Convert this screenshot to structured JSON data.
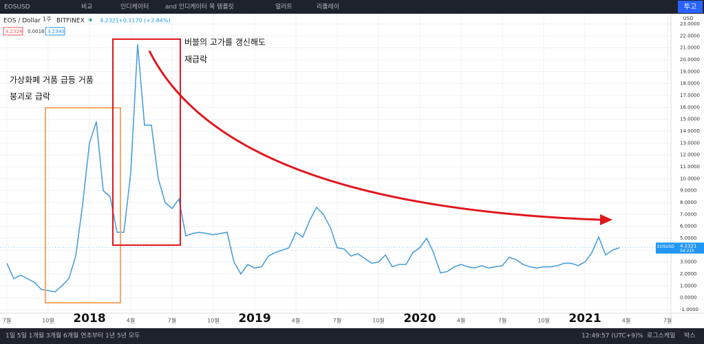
{
  "ui": {
    "toolbar": {
      "symbol": "EOSUSD",
      "compare": "비교",
      "indicators": "인디케이터",
      "templates": "and 인디케이터 목 템플릿",
      "alert": "얼러트",
      "replay": "리플레이",
      "publish": "투고"
    },
    "legend": {
      "name": "EOS / Dollar",
      "interval": "1주",
      "exchange": "BITFINEX",
      "price": "4.2321",
      "change": "+0.1170 (+2.84%)",
      "bid": "4.2324",
      "spread": "0.0016",
      "ask": "4.2340"
    },
    "axis_currency": "USD",
    "last_price": {
      "symbol": "EOSUSD",
      "value": 4.2321,
      "label": "4.2321",
      "countdown": "5d 21h"
    },
    "bottom": {
      "ranges": "1일 5일 1개월 3개월 6개월 연초부터 1년 5년 모두",
      "clock": "12:49:57 (UTC+9)",
      "percent": "%",
      "log": "로그스케일",
      "auto": "박스"
    }
  },
  "chart_data": {
    "type": "line",
    "annotations": [
      "버블의 고가를 갱신해도",
      "재급락",
      "가상화폐 거품 급등 거품",
      "붕괴로 급락"
    ],
    "categories": [
      "7월",
      null,
      null,
      null,
      null,
      null,
      "10월",
      null,
      null,
      null,
      null,
      null,
      "2018",
      null,
      null,
      null,
      null,
      null,
      "4월",
      null,
      null,
      null,
      null,
      null,
      "7월",
      null,
      null,
      null,
      null,
      null,
      "10월",
      null,
      null,
      null,
      null,
      null,
      "2019",
      null,
      null,
      null,
      null,
      null,
      "4월",
      null,
      null,
      null,
      null,
      null,
      "7월",
      null,
      null,
      null,
      null,
      null,
      "10월",
      null,
      null,
      null,
      null,
      null,
      "2020",
      null,
      null,
      null,
      null,
      null,
      "4월",
      null,
      null,
      null,
      null,
      null,
      "7월",
      null,
      null,
      null,
      null,
      null,
      "10월",
      null,
      null,
      null,
      null,
      null,
      "2021",
      null,
      null,
      null,
      null,
      null,
      "4월",
      null,
      null,
      null,
      null,
      null,
      "7월"
    ],
    "series": [
      {
        "name": "EOSUSD",
        "color": "#4a9fd8",
        "values": [
          2.9,
          1.6,
          1.9,
          1.6,
          1.3,
          0.7,
          0.6,
          0.5,
          1.0,
          1.6,
          3.5,
          7.8,
          13.0,
          14.8,
          9.0,
          8.5,
          5.5,
          5.5,
          10.5,
          21.3,
          14.5,
          14.5,
          10.0,
          8.0,
          7.5,
          8.3,
          5.2,
          5.4,
          5.5,
          5.4,
          5.3,
          5.4,
          5.5,
          3.0,
          2.0,
          2.8,
          2.5,
          2.6,
          3.5,
          3.8,
          4.0,
          4.2,
          5.5,
          5.1,
          6.5,
          7.6,
          7.0,
          5.9,
          4.2,
          4.1,
          3.5,
          3.7,
          3.3,
          2.9,
          3.0,
          3.6,
          2.6,
          2.8,
          2.8,
          3.8,
          4.2,
          5.0,
          3.8,
          2.1,
          2.2,
          2.6,
          2.8,
          2.6,
          2.5,
          2.7,
          2.5,
          2.6,
          2.7,
          3.4,
          3.2,
          2.8,
          2.6,
          2.5,
          2.6,
          2.6,
          2.7,
          2.9,
          2.9,
          2.7,
          3.0,
          3.8,
          5.1,
          3.6,
          4.0,
          4.2,
          null,
          null,
          null,
          null,
          null,
          null,
          null
        ]
      }
    ],
    "ylim": [
      -1,
      23
    ],
    "yticks": [
      {
        "value": 23,
        "label": "23.0000"
      },
      {
        "value": 22,
        "label": "22.0000"
      },
      {
        "value": 21,
        "label": "21.0000"
      },
      {
        "value": 20,
        "label": "20.0000"
      },
      {
        "value": 19,
        "label": "19.0000"
      },
      {
        "value": 18,
        "label": "18.0000"
      },
      {
        "value": 17,
        "label": "17.0000"
      },
      {
        "value": 16,
        "label": "16.0000"
      },
      {
        "value": 15,
        "label": "15.0000"
      },
      {
        "value": 14,
        "label": "14.0000"
      },
      {
        "value": 13,
        "label": "13.0000"
      },
      {
        "value": 12,
        "label": "12.0000"
      },
      {
        "value": 11,
        "label": "11.0000"
      },
      {
        "value": 10,
        "label": "10.0000"
      },
      {
        "value": 9,
        "label": "9.0000"
      },
      {
        "value": 8,
        "label": "8.0000"
      },
      {
        "value": 7,
        "label": "7.0000"
      },
      {
        "value": 6,
        "label": "6.0000"
      },
      {
        "value": 5,
        "label": "5.0000"
      },
      {
        "value": 4,
        "label": "4.0000"
      },
      {
        "value": 3,
        "label": "3.0000"
      },
      {
        "value": 2,
        "label": "2.0000"
      },
      {
        "value": 1,
        "label": "1.0000"
      },
      {
        "value": 0,
        "label": "0.0000"
      },
      {
        "value": -1,
        "label": "-1.0000"
      }
    ],
    "grid": true
  }
}
